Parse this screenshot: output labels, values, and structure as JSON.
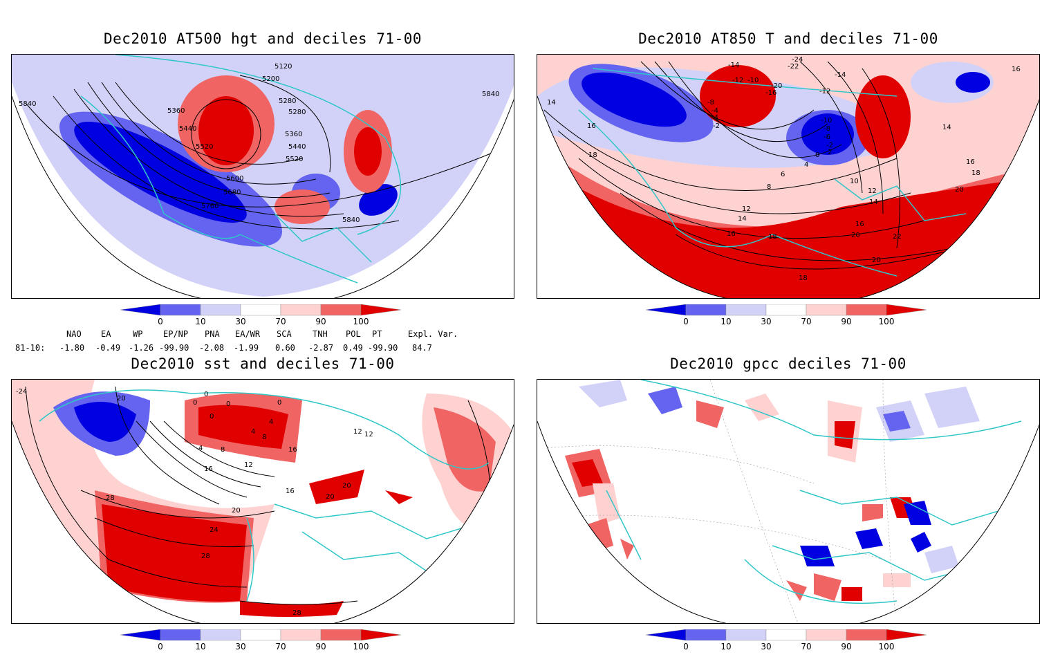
{
  "panels": [
    {
      "title": "Dec2010 AT500 hgt and deciles 71-00",
      "contour_labels": [
        "5840",
        "5120",
        "5200",
        "5280",
        "5360",
        "5280",
        "5440",
        "5360",
        "5520",
        "5440",
        "5520",
        "5600",
        "5680",
        "5760",
        "5840",
        "5840"
      ]
    },
    {
      "title": "Dec2010 AT850 T and deciles 71-00",
      "contour_labels": [
        "-24",
        "-22",
        "-14",
        "-14",
        "-12",
        "-10",
        "-20",
        "-16",
        "-12",
        "16",
        "14",
        "-8",
        "-4",
        "-4",
        "-2",
        "-10",
        "-8",
        "-6",
        "-2",
        "2",
        "0",
        "16",
        "14",
        "18",
        "4",
        "6",
        "16",
        "8",
        "10",
        "12",
        "18",
        "20",
        "12",
        "14",
        "14",
        "16",
        "16",
        "18",
        "20",
        "22",
        "18",
        "20"
      ]
    },
    {
      "title": "Dec2010 sst and deciles 71-00",
      "contour_labels": [
        "-24",
        "20",
        "0",
        "0",
        "0",
        "0",
        "0",
        "4",
        "4",
        "8",
        "4",
        "8",
        "12",
        "16",
        "12",
        "16",
        "16",
        "28",
        "20",
        "24",
        "12",
        "20",
        "20",
        "28",
        "28"
      ]
    },
    {
      "title": "Dec2010 gpcc deciles 71-00",
      "contour_labels": []
    }
  ],
  "colorbar": {
    "ticks": [
      "0",
      "10",
      "30",
      "70",
      "90",
      "100"
    ],
    "colors": [
      "#0000e0",
      "#6464f0",
      "#d2d2f8",
      "#ffffff",
      "#ffd2d2",
      "#f06464",
      "#e00000"
    ]
  },
  "indices": {
    "row_label": "81-10:",
    "items": [
      {
        "name": "NAO",
        "value": "-1.80"
      },
      {
        "name": "EA",
        "value": "-0.49"
      },
      {
        "name": "WP",
        "value": "-1.26"
      },
      {
        "name": "EP/NP",
        "value": "-99.90"
      },
      {
        "name": "PNA",
        "value": "-2.08"
      },
      {
        "name": "EA/WR",
        "value": "-1.99"
      },
      {
        "name": "SCA",
        "value": "0.60"
      },
      {
        "name": "TNH",
        "value": "-2.87"
      },
      {
        "name": "POL",
        "value": "0.49"
      },
      {
        "name": "PT",
        "value": "-99.90"
      },
      {
        "name": "Expl. Var.",
        "value": "84.7"
      }
    ]
  }
}
